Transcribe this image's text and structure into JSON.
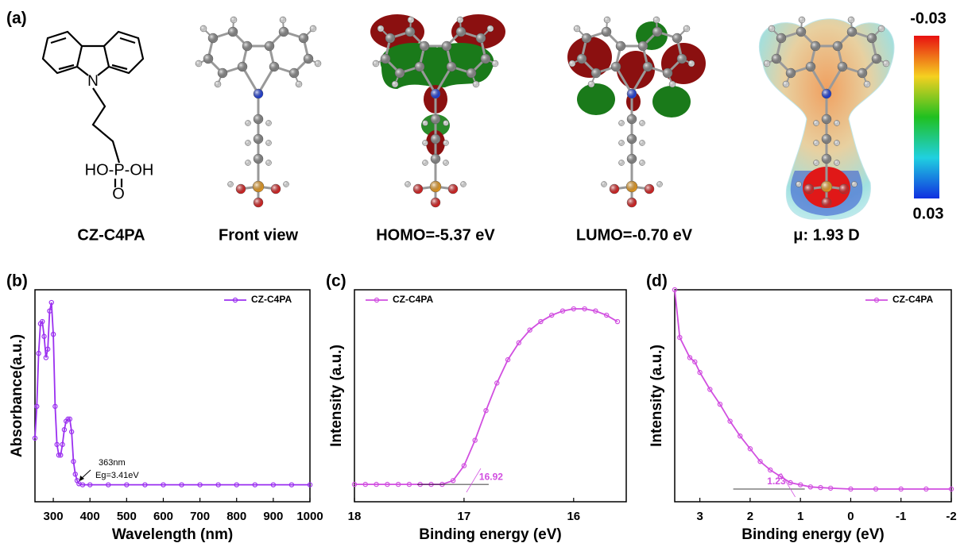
{
  "panel_a": {
    "label": "(a)",
    "formula": {
      "n": "N",
      "phosphonic": "HO-P-OH",
      "oxo": "O"
    },
    "captions": [
      "CZ-C4PA",
      "Front view",
      "HOMO=-5.37 eV",
      "LUMO=-0.70 eV",
      "μ: 1.93 D"
    ],
    "colorbar": {
      "top": "-0.03",
      "bottom": "0.03"
    }
  },
  "chart_data": [
    {
      "type": "line",
      "panel_label": "(b)",
      "x_label": "Wavelength (nm)",
      "y_label": "Absorbance(a.u.)",
      "xlim": [
        250,
        1000
      ],
      "ylim": [
        0,
        1
      ],
      "xticks": [
        300,
        400,
        500,
        600,
        700,
        800,
        900,
        1000
      ],
      "legend": "upper right",
      "annotations": [
        "363nm",
        "Eg=3.41eV"
      ],
      "x": [
        250,
        255,
        260,
        265,
        270,
        275,
        280,
        285,
        290,
        295,
        300,
        305,
        310,
        315,
        320,
        325,
        330,
        335,
        340,
        345,
        350,
        355,
        360,
        365,
        370,
        380,
        400,
        450,
        500,
        550,
        600,
        650,
        700,
        750,
        800,
        850,
        900,
        950,
        1000
      ],
      "series": [
        {
          "name": "CZ-C4PA",
          "color": "#9b30f0",
          "values": [
            0.3,
            0.45,
            0.7,
            0.84,
            0.85,
            0.78,
            0.68,
            0.72,
            0.9,
            0.94,
            0.79,
            0.45,
            0.27,
            0.22,
            0.22,
            0.27,
            0.34,
            0.38,
            0.39,
            0.39,
            0.33,
            0.19,
            0.13,
            0.1,
            0.085,
            0.08,
            0.08,
            0.08,
            0.08,
            0.08,
            0.08,
            0.08,
            0.08,
            0.08,
            0.08,
            0.08,
            0.08,
            0.08,
            0.08
          ]
        }
      ]
    },
    {
      "type": "line",
      "panel_label": "(c)",
      "x_label": "Binding energy (eV)",
      "y_label": "Intensity (a.u.)",
      "xlim": [
        18,
        15.52
      ],
      "ylim": [
        0,
        1
      ],
      "xticks": [
        18,
        17,
        16
      ],
      "legend": "upper left",
      "onset": 16.92,
      "x": [
        18.0,
        17.9,
        17.8,
        17.7,
        17.6,
        17.5,
        17.4,
        17.3,
        17.2,
        17.1,
        17.0,
        16.9,
        16.8,
        16.7,
        16.6,
        16.5,
        16.4,
        16.3,
        16.2,
        16.1,
        16.0,
        15.9,
        15.8,
        15.7,
        15.6
      ],
      "series": [
        {
          "name": "CZ-C4PA",
          "color": "#d14fe0",
          "values": [
            0.082,
            0.082,
            0.082,
            0.082,
            0.082,
            0.082,
            0.082,
            0.082,
            0.082,
            0.1,
            0.17,
            0.29,
            0.43,
            0.56,
            0.67,
            0.75,
            0.81,
            0.85,
            0.88,
            0.9,
            0.91,
            0.91,
            0.9,
            0.88,
            0.85
          ]
        }
      ]
    },
    {
      "type": "line",
      "panel_label": "(d)",
      "x_label": "Binding energy (eV)",
      "y_label": "Intensity (a.u.)",
      "xlim": [
        3.5,
        -2
      ],
      "ylim": [
        0,
        1
      ],
      "xticks": [
        3,
        2,
        1,
        0,
        -1,
        -2
      ],
      "legend": "upper right",
      "onset": 1.23,
      "x": [
        3.5,
        3.4,
        3.2,
        3.1,
        3.0,
        2.8,
        2.6,
        2.4,
        2.2,
        2.0,
        1.8,
        1.6,
        1.4,
        1.2,
        1.0,
        0.8,
        0.6,
        0.4,
        0.0,
        -0.5,
        -1.0,
        -1.5,
        -2.0
      ],
      "series": [
        {
          "name": "CZ-C4PA",
          "color": "#d14fe0",
          "values": [
            1.0,
            0.775,
            0.68,
            0.66,
            0.61,
            0.53,
            0.46,
            0.38,
            0.31,
            0.25,
            0.19,
            0.15,
            0.12,
            0.09,
            0.08,
            0.07,
            0.067,
            0.064,
            0.06,
            0.06,
            0.06,
            0.06,
            0.06
          ]
        }
      ]
    }
  ]
}
